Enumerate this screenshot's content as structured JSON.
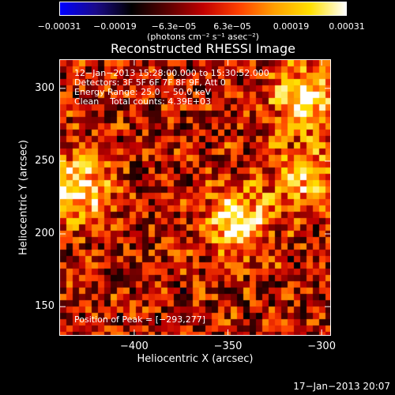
{
  "chart_data": {
    "type": "heatmap",
    "title": "Reconstructed RHESSI Image",
    "xlabel": "Heliocentric X (arcsec)",
    "ylabel": "Heliocentric Y (arcsec)",
    "xlim": [
      -440,
      -295
    ],
    "ylim": [
      130,
      320
    ],
    "xticks": [
      -400,
      -350,
      -300
    ],
    "xtick_labels": [
      "−400",
      "−350",
      "−300"
    ],
    "yticks": [
      150,
      200,
      250,
      300
    ],
    "ytick_labels": [
      "150",
      "200",
      "250",
      "300"
    ],
    "colorbar": {
      "min": -0.00031,
      "max": 0.00031,
      "ticks": [
        -0.00031,
        -0.00019,
        -6.3e-05,
        6.3e-05,
        0.00019,
        0.00031
      ],
      "tick_labels": [
        "−0.00031",
        "−0.00019",
        "−6.3e−05",
        "6.3e−05",
        "0.00019",
        "0.00031"
      ],
      "units": "(photons cm⁻² s⁻¹ asec⁻²)",
      "colors": [
        "#0000ff",
        "#1a0a8a",
        "#000000",
        "#5a0000",
        "#c00000",
        "#ff4000",
        "#ffa000",
        "#ffe000",
        "#ffffff"
      ]
    },
    "annotations": [
      "12−Jan−2013 15:28:00.000 to 15:30:52.000",
      "Detectors: 3F 5F 6F 7F 8F 9F, Att 0",
      "Energy Range: 25.0 − 50.0 keV",
      "Clean    Total counts: 4.39E+03"
    ],
    "peak_label": "Position of Peak = [−293,277]",
    "peak": [
      -293,
      277
    ],
    "bright_sources": [
      {
        "x": -345,
        "y": 210,
        "level": 0.00031
      },
      {
        "x": -430,
        "y": 232,
        "level": 0.00028
      },
      {
        "x": -310,
        "y": 293,
        "level": 0.00027
      },
      {
        "x": -310,
        "y": 240,
        "level": 0.0002
      }
    ]
  },
  "footer": {
    "timestamp": "17−Jan−2013 20:07"
  }
}
